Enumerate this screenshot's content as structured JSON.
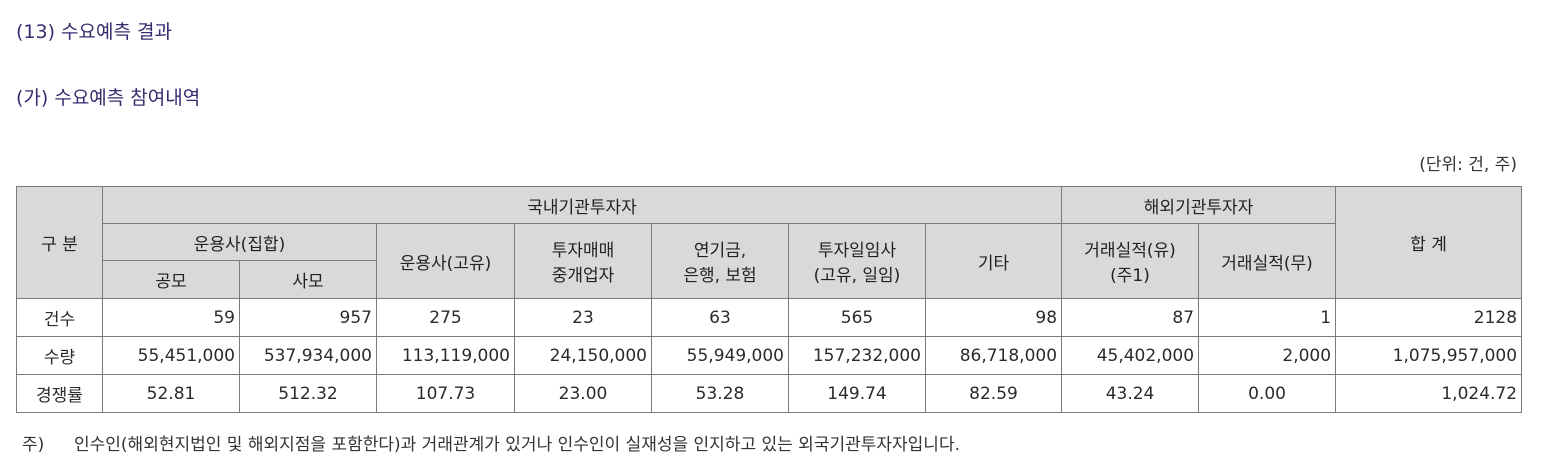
{
  "heading_main": "(13) 수요예측 결과",
  "heading_sub": "(가) 수요예측 참여내역",
  "unit_label": "(단위: 건, 주)",
  "table": {
    "h_category": "구 분",
    "h_domestic": "국내기관투자자",
    "h_foreign": "해외기관투자자",
    "h_total": "합 계",
    "h_mgmt_group": "운용사(집합)",
    "h_public": "공모",
    "h_private": "사모",
    "h_mgmt_own": "운용사(고유)",
    "h_broker": [
      "투자매매",
      "중개업자"
    ],
    "h_pension": [
      "연기금,",
      "은행, 보험"
    ],
    "h_invest": [
      "투자일임사",
      "(고유, 일임)"
    ],
    "h_other": "기타",
    "h_trade_yes": [
      "거래실적(유)",
      "(주1)"
    ],
    "h_trade_no": "거래실적(무)",
    "rows": [
      {
        "label": "건수",
        "values": [
          "59",
          "957",
          "275",
          "23",
          "63",
          "565",
          "98",
          "87",
          "1",
          "2128"
        ]
      },
      {
        "label": "수량",
        "values": [
          "55,451,000",
          "537,934,000",
          "113,119,000",
          "24,150,000",
          "55,949,000",
          "157,232,000",
          "86,718,000",
          "45,402,000",
          "2,000",
          "1,075,957,000"
        ]
      },
      {
        "label": "경쟁률",
        "values": [
          "52.81",
          "512.32",
          "107.73",
          "23.00",
          "53.28",
          "149.74",
          "82.59",
          "43.24",
          "0.00",
          "1,024.72"
        ]
      }
    ]
  },
  "footnote": {
    "mark": "주)",
    "text": "인수인(해외현지법인 및 해외지점을 포함한다)과 거래관계가 있거나 인수인이 실재성을 인지하고 있는 외국기관투자자입니다."
  }
}
